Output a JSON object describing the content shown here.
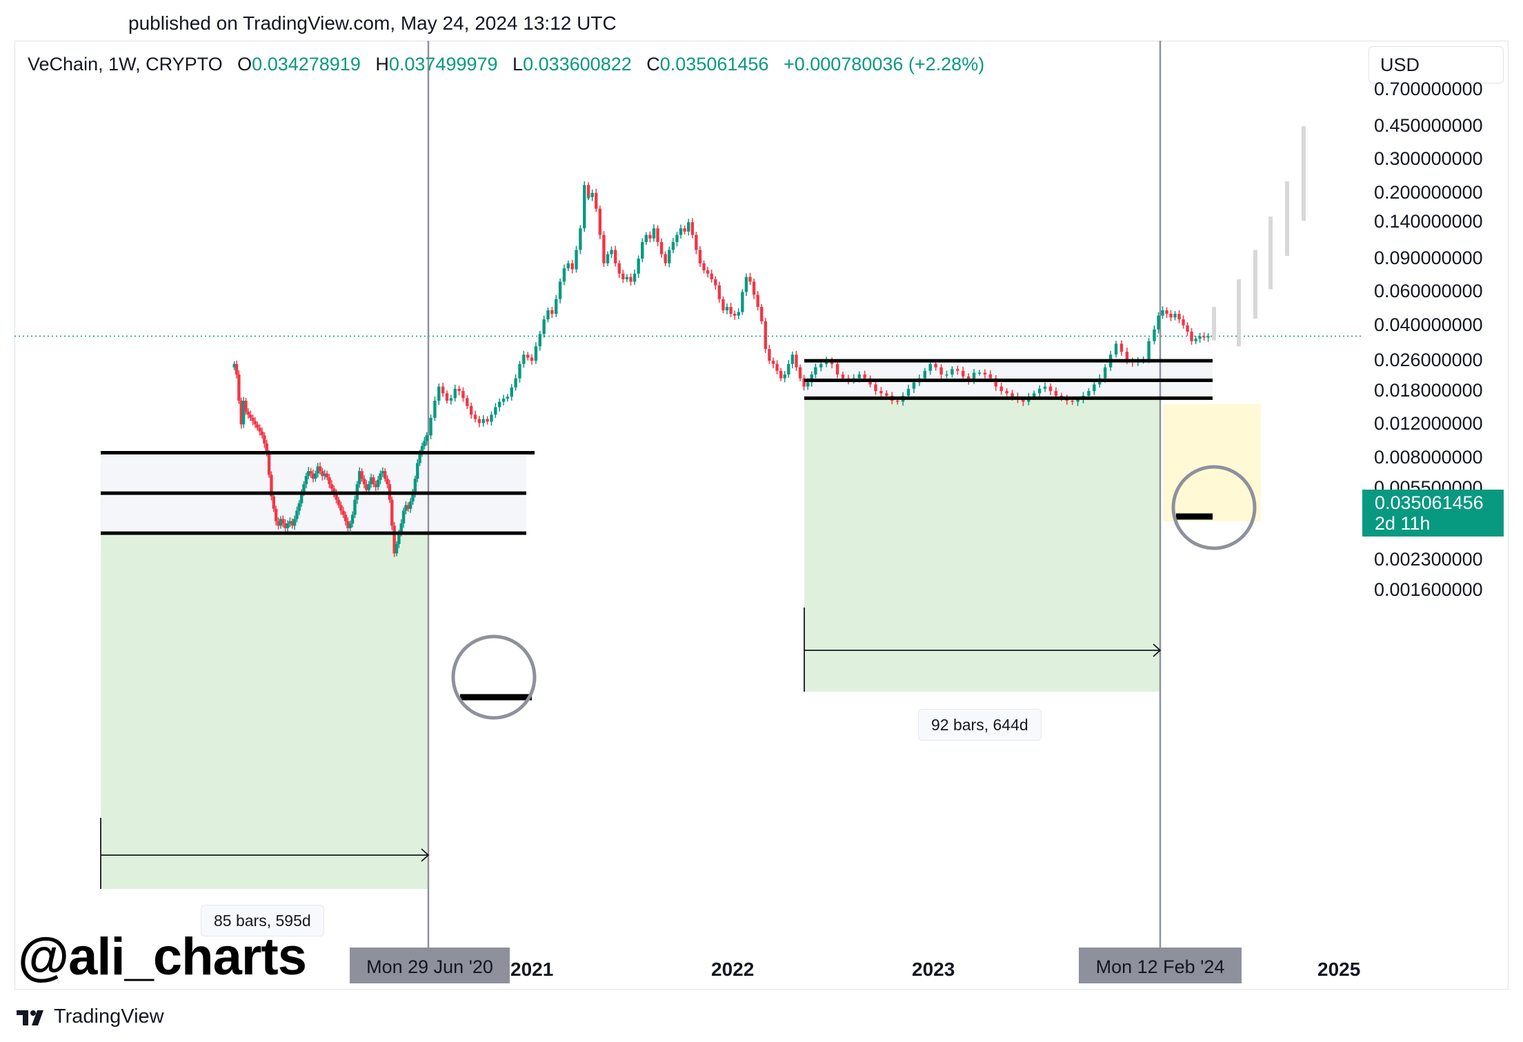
{
  "header": {
    "published": "published on TradingView.com, May 24, 2024 13:12 UTC"
  },
  "legend": {
    "title": "VeChain, 1W, CRYPTO",
    "open_label": "O",
    "open": "0.034278919",
    "high_label": "H",
    "high": "0.037499979",
    "low_label": "L",
    "low": "0.033600822",
    "close_label": "C",
    "close": "0.035061456",
    "change": "+0.000780036 (+2.28%)"
  },
  "currency": "USD",
  "price_badge": {
    "price": "0.035061456",
    "countdown": "2d 11h"
  },
  "date_badges": [
    "Mon 29 Jun '20",
    "Mon 12 Feb '24"
  ],
  "measure_labels": [
    "85 bars, 595d",
    "92 bars, 644d"
  ],
  "watermark": "@ali_charts",
  "brand": "TradingView",
  "colors": {
    "up": "#089981",
    "down": "#f23645",
    "highlight": "#fff9d6",
    "range_fill": "#f4f6f9",
    "target_fill": "#dff1dc",
    "projection": "#d8d8d8"
  },
  "chart_data": {
    "type": "candlestick",
    "symbol": "VeChain",
    "interval": "1W",
    "scale": "log",
    "y_ticks": [
      0.7,
      0.45,
      0.3,
      0.2,
      0.14,
      0.09,
      0.06,
      0.04,
      0.026,
      0.018,
      0.012,
      0.008,
      0.0055,
      0.0035,
      0.0023,
      0.0016
    ],
    "y_tick_labels": [
      "0.700000000",
      "0.450000000",
      "0.300000000",
      "0.200000000",
      "0.140000000",
      "0.090000000",
      "0.060000000",
      "0.040000000",
      "0.026000000",
      "0.018000000",
      "0.012000000",
      "0.008000000",
      "0.005500000",
      "0.003500000",
      "0.002300000",
      "0.001600000"
    ],
    "x_labels": [
      "2021",
      "2022",
      "2023",
      "2025"
    ],
    "current_price": 0.035061456,
    "series": [
      {
        "start": "2019-07-15",
        "end": "2020-06-29",
        "closes": [
          0.025,
          0.022,
          0.016,
          0.012,
          0.016,
          0.014,
          0.0135,
          0.013,
          0.0125,
          0.012,
          0.0115,
          0.011,
          0.0105,
          0.0095,
          0.0085,
          0.0065,
          0.005,
          0.0043,
          0.0037,
          0.0035,
          0.0038,
          0.0036,
          0.0034,
          0.0036,
          0.0037,
          0.0035,
          0.0038,
          0.0042,
          0.0046,
          0.0052,
          0.0058,
          0.0064,
          0.0068,
          0.0066,
          0.0062,
          0.0066,
          0.0072,
          0.0068,
          0.0064,
          0.0066,
          0.0063,
          0.0058,
          0.0055,
          0.0052,
          0.0048,
          0.0045,
          0.0042,
          0.004,
          0.0037,
          0.0034,
          0.0036,
          0.004,
          0.0048,
          0.0058,
          0.0068,
          0.0062,
          0.0058,
          0.0054,
          0.0058,
          0.0063,
          0.0058,
          0.0056,
          0.0061,
          0.0066,
          0.0068,
          0.0062,
          0.0058,
          0.0048,
          0.0035,
          0.0025,
          0.0028,
          0.0032,
          0.0036,
          0.0042,
          0.0045,
          0.0043,
          0.0047,
          0.0052,
          0.0062,
          0.0075,
          0.0085,
          0.0092,
          0.0098,
          0.0105
        ]
      },
      {
        "start": "2020-06-29",
        "end": "2021-04-19",
        "closes": [
          0.0105,
          0.013,
          0.016,
          0.019,
          0.0175,
          0.016,
          0.0165,
          0.0185,
          0.018,
          0.0165,
          0.015,
          0.0135,
          0.0128,
          0.0122,
          0.0128,
          0.0124,
          0.0135,
          0.0148,
          0.0158,
          0.0164,
          0.0168,
          0.0188,
          0.021,
          0.025,
          0.028,
          0.027,
          0.026,
          0.031,
          0.036,
          0.043,
          0.048,
          0.046,
          0.055,
          0.068,
          0.08,
          0.085,
          0.079,
          0.1,
          0.13,
          0.22,
          0.19
        ]
      },
      {
        "start": "2021-04-19",
        "end": "2022-06-06",
        "closes": [
          0.19,
          0.2,
          0.165,
          0.12,
          0.085,
          0.095,
          0.1,
          0.085,
          0.075,
          0.07,
          0.072,
          0.068,
          0.075,
          0.09,
          0.11,
          0.12,
          0.115,
          0.13,
          0.11,
          0.095,
          0.085,
          0.1,
          0.11,
          0.12,
          0.13,
          0.125,
          0.14,
          0.12,
          0.1,
          0.085,
          0.078,
          0.075,
          0.07,
          0.065,
          0.055,
          0.048,
          0.05,
          0.046,
          0.045,
          0.047,
          0.06,
          0.072,
          0.068,
          0.058,
          0.05,
          0.042,
          0.03,
          0.026,
          0.025,
          0.023,
          0.021,
          0.022,
          0.025,
          0.028,
          0.024,
          0.021,
          0.019,
          0.02,
          0.022,
          0.024
        ]
      },
      {
        "start": "2022-06-06",
        "end": "2024-02-12",
        "closes": [
          0.024,
          0.025,
          0.026,
          0.025,
          0.022,
          0.021,
          0.0205,
          0.021,
          0.022,
          0.021,
          0.0195,
          0.018,
          0.0175,
          0.017,
          0.016,
          0.0158,
          0.017,
          0.0185,
          0.02,
          0.021,
          0.023,
          0.025,
          0.024,
          0.022,
          0.022,
          0.0235,
          0.023,
          0.0215,
          0.0205,
          0.0225,
          0.0225,
          0.022,
          0.021,
          0.019,
          0.018,
          0.0175,
          0.0168,
          0.0162,
          0.0158,
          0.0168,
          0.0175,
          0.0185,
          0.019,
          0.018,
          0.017,
          0.0165,
          0.016,
          0.0158,
          0.0162,
          0.017,
          0.018,
          0.0195,
          0.021,
          0.024,
          0.028,
          0.032,
          0.029,
          0.026,
          0.0255,
          0.026,
          0.0265,
          0.033,
          0.038
        ]
      },
      {
        "start": "2024-02-12",
        "end": "2024-05-20",
        "closes": [
          0.038,
          0.045,
          0.048,
          0.046,
          0.044,
          0.046,
          0.043,
          0.04,
          0.037,
          0.033,
          0.034,
          0.035,
          0.0345,
          0.035061456
        ]
      }
    ],
    "annotations": {
      "cycle_2020": {
        "range_lines": [
          0.0085,
          0.0052,
          0.0032
        ],
        "duration_bars": 85,
        "duration_days": 595
      },
      "cycle_2024": {
        "range_lines": [
          0.026,
          0.0205,
          0.0165
        ],
        "duration_bars": 92,
        "duration_days": 644
      }
    },
    "projection_levels": [
      0.05,
      0.07,
      0.1,
      0.15,
      0.23,
      0.45
    ]
  }
}
